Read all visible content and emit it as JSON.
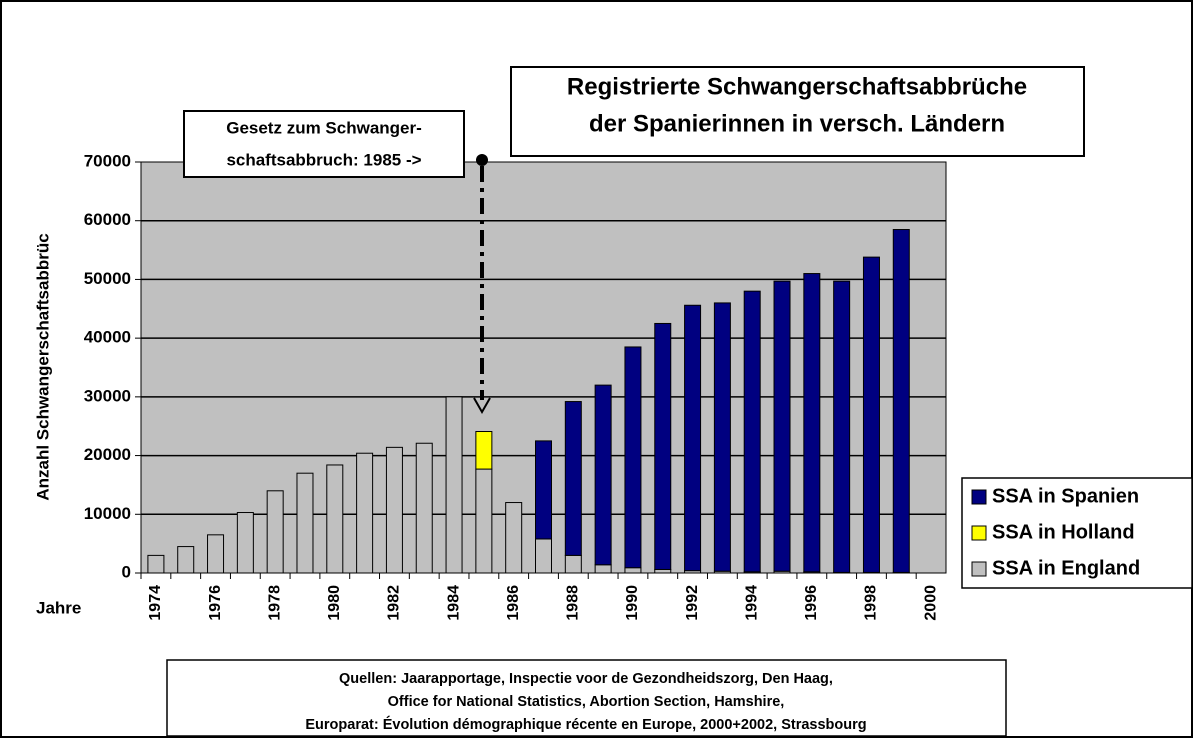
{
  "chart_data": {
    "type": "bar",
    "stacked": true,
    "title": [
      "Registrierte Schwangerschaftsabbrüche",
      "der Spanierinnen in versch. Ländern"
    ],
    "annotation": [
      "Gesetz zum Schwanger-",
      "schaftsabbruch: 1985 ->"
    ],
    "source": [
      "Quellen: Jaarapportage, Inspectie voor de Gezondheidszorg, Den Haag,",
      "Office for National Statistics, Abortion Section, Hamshire,",
      "Europarat: Évolution démographique récente en Europe, 2000+2002, Strassbourg"
    ],
    "ylabel": "Anzahl Schwangerschaftsabbrüc",
    "xlabel": "Jahre",
    "categories": [
      "1974",
      null,
      "1976",
      null,
      "1978",
      null,
      "1980",
      null,
      "1982",
      null,
      "1984",
      null,
      "1986",
      null,
      "1988",
      null,
      "1990",
      null,
      "1992",
      null,
      "1994",
      null,
      "1996",
      null,
      "1998",
      null,
      "2000"
    ],
    "series": [
      {
        "name": "SSA in Spanien",
        "color": "#000080",
        "values": [
          null,
          null,
          null,
          null,
          null,
          null,
          null,
          null,
          null,
          null,
          null,
          null,
          null,
          16700,
          26200,
          30600,
          37600,
          41900,
          45200,
          45700,
          47800,
          49400,
          50800,
          49600,
          53700,
          58400,
          null
        ]
      },
      {
        "name": "SSA in Holland",
        "color": "#ffff00",
        "values": [
          null,
          null,
          null,
          null,
          null,
          null,
          null,
          null,
          null,
          null,
          null,
          6400,
          null,
          null,
          null,
          null,
          null,
          null,
          null,
          null,
          null,
          null,
          null,
          null,
          null,
          null,
          null
        ]
      },
      {
        "name": "SSA in England",
        "color": "#c0c0c0",
        "values": [
          3000,
          4500,
          6500,
          10300,
          14000,
          17000,
          18400,
          20400,
          21400,
          22100,
          30000,
          17700,
          12000,
          5800,
          3000,
          1400,
          900,
          600,
          400,
          300,
          200,
          300,
          200,
          100,
          100,
          100,
          null
        ]
      }
    ],
    "ylim": [
      0,
      70000
    ],
    "yticks": [
      0,
      10000,
      20000,
      30000,
      40000,
      50000,
      60000,
      70000
    ],
    "grid": true,
    "legend": "right"
  }
}
